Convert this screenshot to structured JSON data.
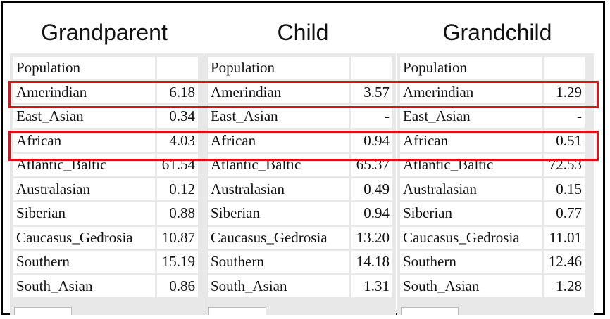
{
  "headings": [
    "Grandparent",
    "Child",
    "Grandchild"
  ],
  "header_row": "Population",
  "populations": [
    "Amerindian",
    "East_Asian",
    "African",
    "Atlantic_Baltic",
    "Australasian",
    "Siberian",
    "Caucasus_Gedrosia",
    "Southern",
    "South_Asian"
  ],
  "grandparent": [
    "6.18",
    "0.34",
    "4.03",
    "61.54",
    "0.12",
    "0.88",
    "10.87",
    "15.19",
    "0.86"
  ],
  "child": [
    "3.57",
    "-",
    "0.94",
    "65.37",
    "0.49",
    "0.94",
    "13.20",
    "14.18",
    "1.31"
  ],
  "grandchild": [
    "1.29",
    "-",
    "0.51",
    "72.53",
    "0.15",
    "0.77",
    "11.01",
    "12.46",
    "1.28"
  ],
  "highlighted_rows": [
    "Amerindian",
    "African"
  ],
  "highlight_color": "#e01010"
}
